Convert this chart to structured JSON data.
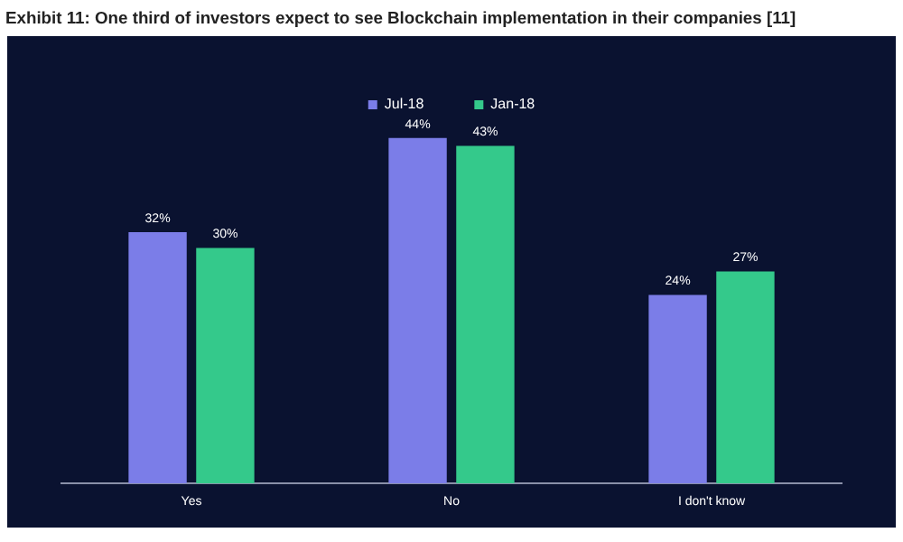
{
  "chart_data": {
    "type": "bar",
    "title": "Exhibit 11: One third of investors expect to see Blockchain implementation in their companies [11]",
    "categories": [
      "Yes",
      "No",
      "I don't know"
    ],
    "series": [
      {
        "name": "Jul-18",
        "color": "#7b7de8",
        "values": [
          32,
          44,
          24
        ],
        "value_labels": [
          "32%",
          "44%",
          "24%"
        ]
      },
      {
        "name": "Jan-18",
        "color": "#34c98b",
        "values": [
          30,
          43,
          27
        ],
        "value_labels": [
          "30%",
          "43%",
          "27%"
        ]
      }
    ],
    "legend": "top",
    "grid": false
  }
}
